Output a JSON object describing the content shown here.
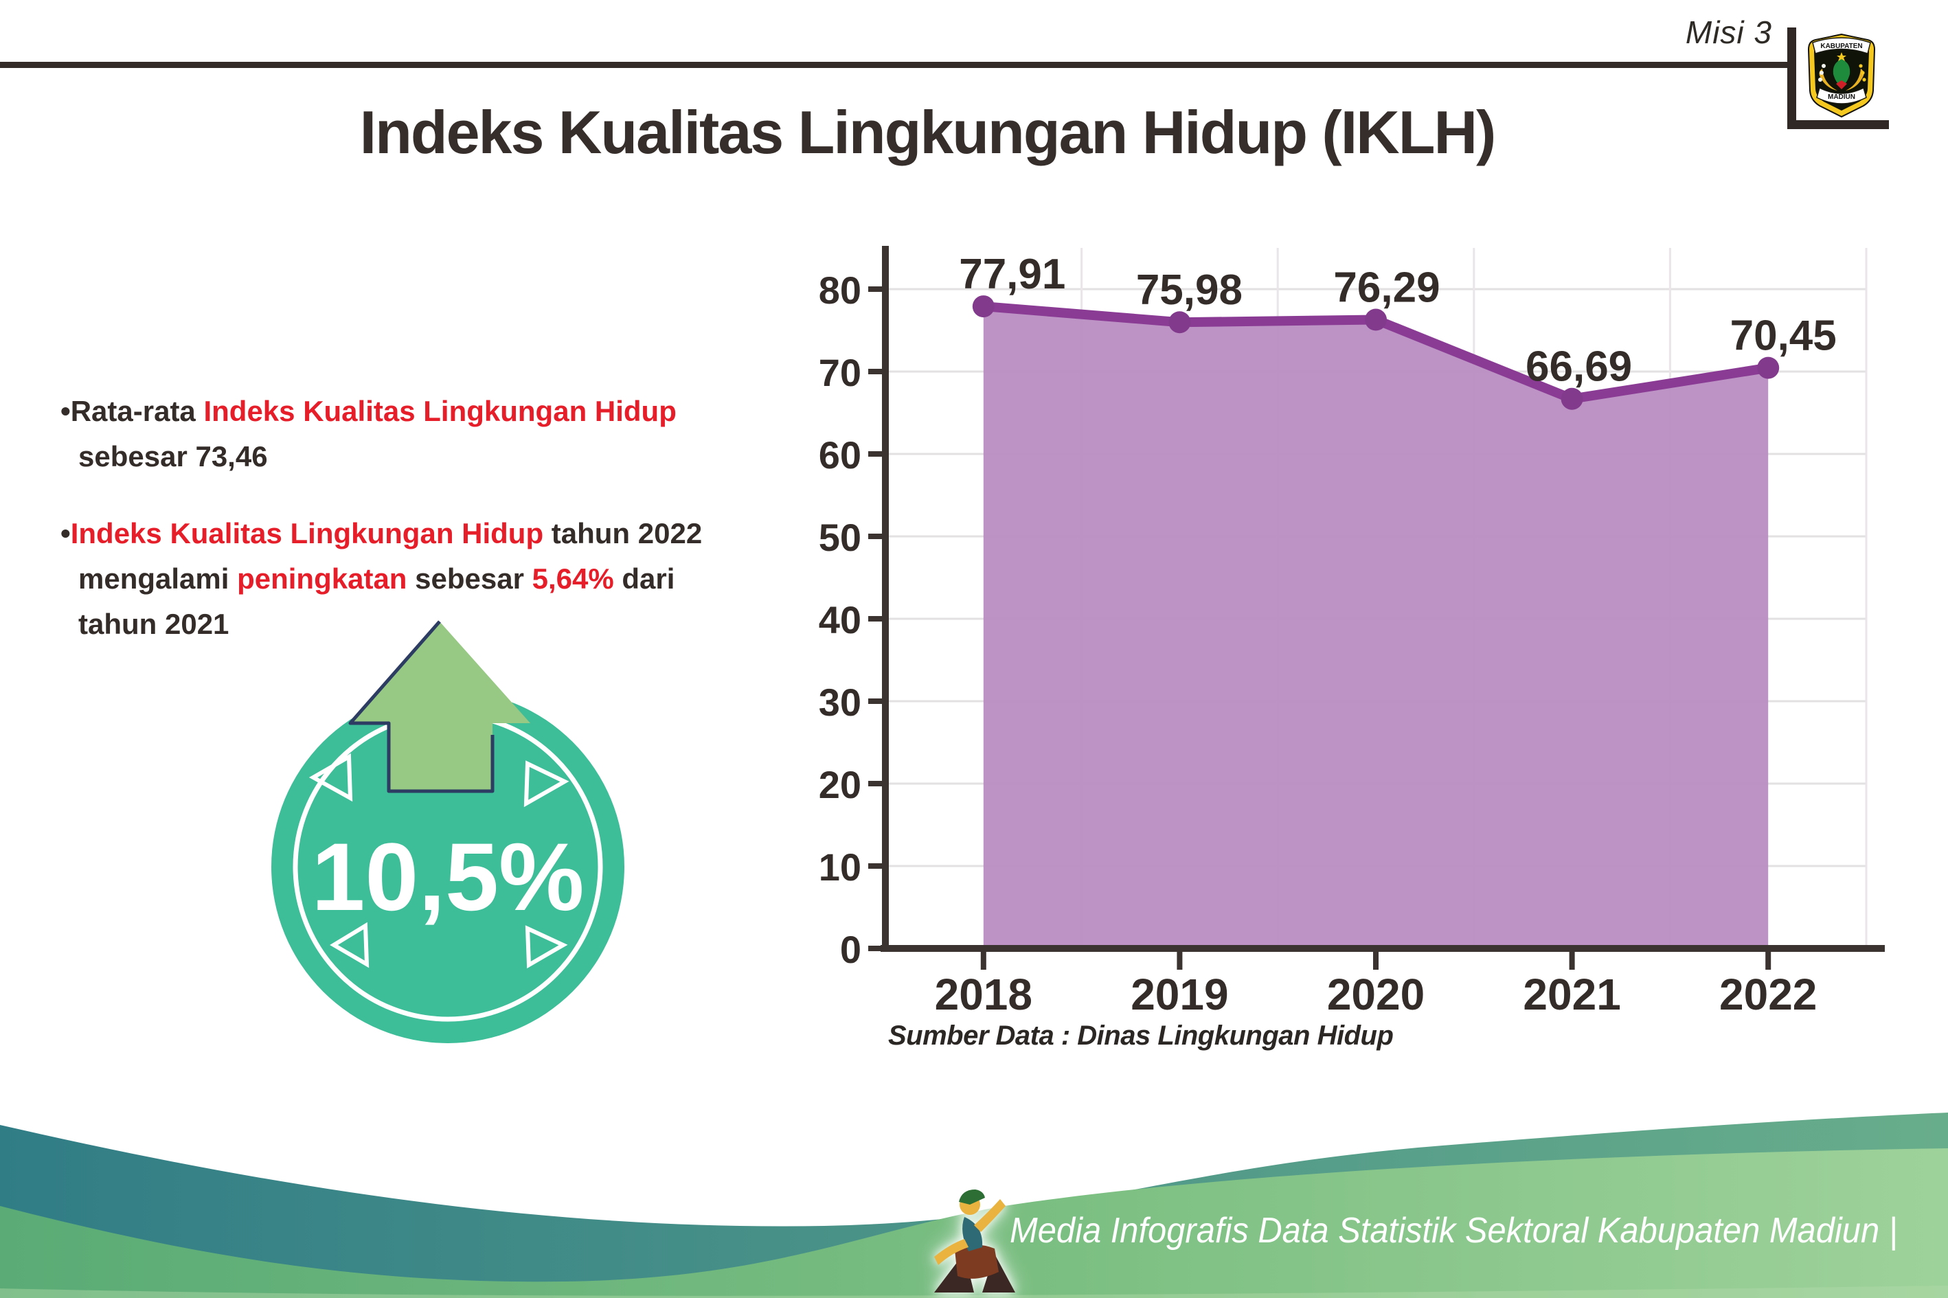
{
  "header": {
    "misi_label": "Misi 3",
    "title": "Indeks Kualitas Lingkungan Hidup (IKLH)",
    "logo": {
      "top_text": "KABUPATEN",
      "bottom_text": "MADIUN"
    }
  },
  "list_bullet_char": "•",
  "bullets": [
    {
      "segments": [
        {
          "text": "Rata-rata ",
          "color": "dark"
        },
        {
          "text": "Indeks Kualitas Lingkungan Hidup",
          "color": "red"
        },
        {
          "break": true
        },
        {
          "text": "sebesar 73,46",
          "color": "dark"
        }
      ]
    },
    {
      "segments": [
        {
          "text": "Indeks Kualitas Lingkungan Hidup",
          "color": "red"
        },
        {
          "text": " tahun 2022",
          "color": "dark"
        },
        {
          "break": true
        },
        {
          "text": "mengalami ",
          "color": "dark"
        },
        {
          "text": "peningkatan",
          "color": "red"
        },
        {
          "text": " sebesar ",
          "color": "dark"
        },
        {
          "text": "5,64%",
          "color": "red"
        },
        {
          "text": " dari",
          "color": "dark"
        },
        {
          "break": true
        },
        {
          "text": "tahun 2021",
          "color": "dark"
        }
      ]
    }
  ],
  "badge": {
    "value_label": "10,5%",
    "direction": "up"
  },
  "chart_data": {
    "type": "area",
    "categories": [
      "2018",
      "2019",
      "2020",
      "2021",
      "2022"
    ],
    "values": [
      77.91,
      75.98,
      76.29,
      66.69,
      70.45
    ],
    "value_labels": [
      "77,91",
      "75,98",
      "76,29",
      "66,69",
      "70,45"
    ],
    "title": "",
    "xlabel": "",
    "ylabel": "",
    "ylim": [
      0,
      80
    ],
    "ytick_step": 10,
    "ytick_labels": [
      "0",
      "10",
      "20",
      "30",
      "40",
      "50",
      "60",
      "70",
      "80"
    ],
    "grid": true,
    "legend_position": "none"
  },
  "source_note": "Sumber Data : Dinas Lingkungan Hidup",
  "footer": {
    "caption": "Media Infografis Data Statistik Sektoral Kabupaten Madiun |"
  },
  "colors": {
    "text_dark": "#332c28",
    "accent_red": "#e61e2a",
    "axis_dark": "#3a3330",
    "chart_line": "#8a3c95",
    "chart_marker": "#823a8c",
    "chart_fill": "#b98dc2",
    "gridline": "#e3e1e1",
    "badge_teal": "#3dbd98",
    "arrow_green": "#97c884",
    "arrow_outline": "#2d3c63",
    "footer_teal": "#317d86",
    "footer_green": "#7cbf82"
  }
}
